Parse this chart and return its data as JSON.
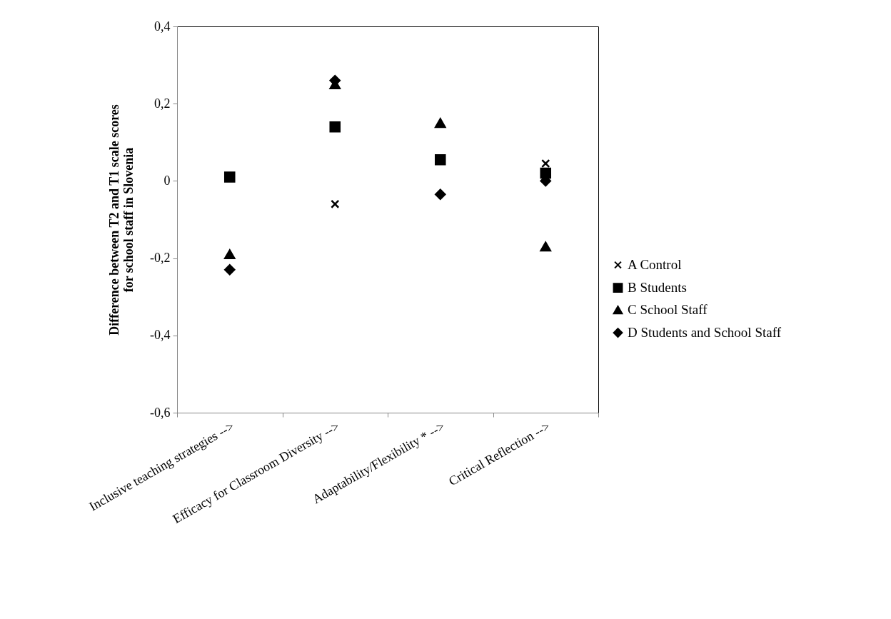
{
  "chart_data": {
    "type": "scatter",
    "ylabel": "Difference between T2 and T1 scale scores for school staff in Slovenia",
    "categories": [
      "Inclusive teaching strategies -->",
      "Efficacy for Classroom Diversity -->",
      "Adaptability/Flexibility * -->",
      "Critical Reflection -->"
    ],
    "series": [
      {
        "name": "A Control",
        "color": "#000000",
        "marker": "cross",
        "values": [
          null,
          -0.06,
          null,
          0.045
        ]
      },
      {
        "name": "B Students",
        "color": "#000000",
        "marker": "square",
        "values": [
          0.01,
          0.14,
          0.055,
          0.02
        ]
      },
      {
        "name": "C School Staff",
        "color": "#000000",
        "marker": "triangle",
        "values": [
          -0.19,
          0.25,
          0.15,
          -0.17
        ]
      },
      {
        "name": "D Students and School Staff",
        "color": "#000000",
        "marker": "diamond",
        "values": [
          -0.23,
          0.26,
          -0.035,
          0
        ]
      }
    ],
    "ylim": [
      -0.6,
      0.4
    ],
    "yticks": [
      {
        "value": -0.6,
        "label": "-0,6"
      },
      {
        "value": -0.4,
        "label": "-0,4"
      },
      {
        "value": -0.2,
        "label": "-0,2"
      },
      {
        "value": 0,
        "label": "0"
      },
      {
        "value": 0.2,
        "label": "0,2"
      },
      {
        "value": 0.4,
        "label": "0,4"
      }
    ],
    "grid": false,
    "legend": "right"
  }
}
